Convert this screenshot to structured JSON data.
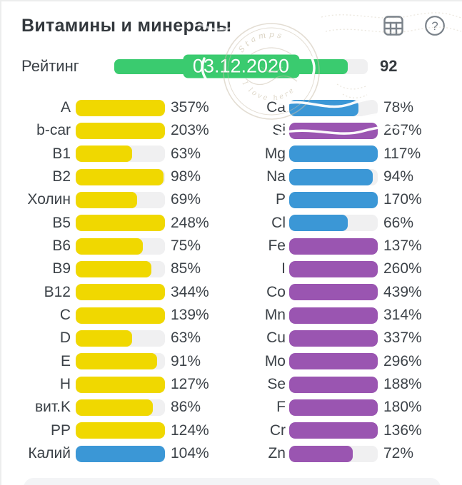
{
  "header": {
    "title": "Витамины и минералы",
    "icons": {
      "table": "table-icon",
      "help": "help-icon"
    }
  },
  "rating": {
    "label": "Рейтинг",
    "value": 92,
    "value_text": "92",
    "max": 100,
    "date": "03.12.2020"
  },
  "colors": {
    "yellow": "#f0d800",
    "blue": "#3b97d6",
    "purple": "#9a55b1",
    "green": "#3acb6f",
    "track": "#f0f0f1"
  },
  "watermark": {
    "text_top": "Stamps",
    "text_bottom": "I love here"
  },
  "chart_data": {
    "type": "bar",
    "orientation": "horizontal",
    "unit": "%",
    "title": "Витамины и минералы",
    "fill_cap_percent": 100,
    "rating": {
      "label": "Рейтинг",
      "value": 92,
      "date": "03.12.2020"
    },
    "vitamins": [
      {
        "label": "A",
        "value": 357,
        "text": "357%",
        "color": "yellow"
      },
      {
        "label": "b-car",
        "value": 203,
        "text": "203%",
        "color": "yellow"
      },
      {
        "label": "B1",
        "value": 63,
        "text": "63%",
        "color": "yellow"
      },
      {
        "label": "B2",
        "value": 98,
        "text": "98%",
        "color": "yellow"
      },
      {
        "label": "Холин",
        "value": 69,
        "text": "69%",
        "color": "yellow"
      },
      {
        "label": "B5",
        "value": 248,
        "text": "248%",
        "color": "yellow"
      },
      {
        "label": "B6",
        "value": 75,
        "text": "75%",
        "color": "yellow"
      },
      {
        "label": "B9",
        "value": 85,
        "text": "85%",
        "color": "yellow"
      },
      {
        "label": "B12",
        "value": 344,
        "text": "344%",
        "color": "yellow"
      },
      {
        "label": "C",
        "value": 139,
        "text": "139%",
        "color": "yellow"
      },
      {
        "label": "D",
        "value": 63,
        "text": "63%",
        "color": "yellow"
      },
      {
        "label": "E",
        "value": 91,
        "text": "91%",
        "color": "yellow"
      },
      {
        "label": "H",
        "value": 127,
        "text": "127%",
        "color": "yellow"
      },
      {
        "label": "вит.K",
        "value": 86,
        "text": "86%",
        "color": "yellow"
      },
      {
        "label": "PP",
        "value": 124,
        "text": "124%",
        "color": "yellow"
      },
      {
        "label": "Калий",
        "value": 104,
        "text": "104%",
        "color": "blue"
      }
    ],
    "minerals": [
      {
        "label": "Ca",
        "value": 78,
        "text": "78%",
        "color": "blue"
      },
      {
        "label": "Si",
        "value": 267,
        "text": "267%",
        "color": "purple"
      },
      {
        "label": "Mg",
        "value": 117,
        "text": "117%",
        "color": "blue"
      },
      {
        "label": "Na",
        "value": 94,
        "text": "94%",
        "color": "blue"
      },
      {
        "label": "P",
        "value": 170,
        "text": "170%",
        "color": "blue"
      },
      {
        "label": "Cl",
        "value": 66,
        "text": "66%",
        "color": "blue"
      },
      {
        "label": "Fe",
        "value": 137,
        "text": "137%",
        "color": "purple"
      },
      {
        "label": "I",
        "value": 260,
        "text": "260%",
        "color": "purple"
      },
      {
        "label": "Co",
        "value": 439,
        "text": "439%",
        "color": "purple"
      },
      {
        "label": "Mn",
        "value": 314,
        "text": "314%",
        "color": "purple"
      },
      {
        "label": "Cu",
        "value": 337,
        "text": "337%",
        "color": "purple"
      },
      {
        "label": "Mo",
        "value": 296,
        "text": "296%",
        "color": "purple"
      },
      {
        "label": "Se",
        "value": 188,
        "text": "188%",
        "color": "purple"
      },
      {
        "label": "F",
        "value": 180,
        "text": "180%",
        "color": "purple"
      },
      {
        "label": "Cr",
        "value": 136,
        "text": "136%",
        "color": "purple"
      },
      {
        "label": "Zn",
        "value": 72,
        "text": "72%",
        "color": "purple"
      }
    ]
  }
}
